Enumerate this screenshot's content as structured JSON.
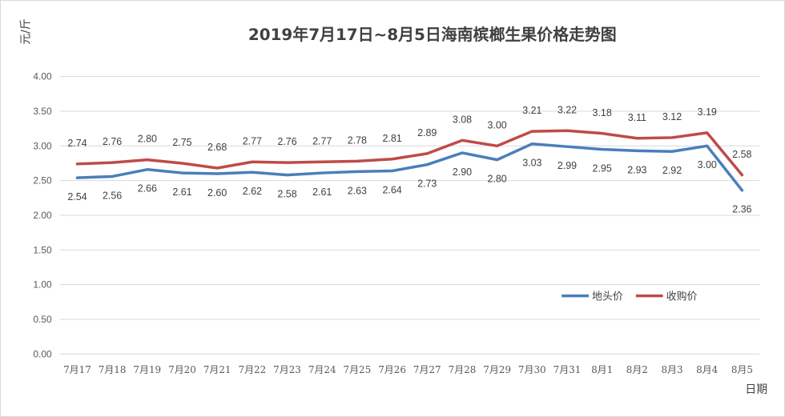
{
  "chart_data": {
    "type": "line",
    "title": "2019年7月17日~8月5日海南槟榔生果价格走势图",
    "ylabel": "元/斤",
    "xlabel": "日期",
    "ylim": [
      0,
      4
    ],
    "yticks": [
      "0.00",
      "0.50",
      "1.00",
      "1.50",
      "2.00",
      "2.50",
      "3.00",
      "3.50",
      "4.00"
    ],
    "grid": true,
    "legend_position": "right-middle",
    "categories": [
      "7月17",
      "7月18",
      "7月19",
      "7月20",
      "7月21",
      "7月22",
      "7月23",
      "7月24",
      "7月25",
      "7月26",
      "7月27",
      "7月28",
      "7月29",
      "7月30",
      "7月31",
      "8月1",
      "8月2",
      "8月3",
      "8月4",
      "8月5"
    ],
    "series": [
      {
        "name": "地头价",
        "color": "#4a7ebb",
        "values": [
          2.54,
          2.56,
          2.66,
          2.61,
          2.6,
          2.62,
          2.58,
          2.61,
          2.63,
          2.64,
          2.73,
          2.9,
          2.8,
          3.03,
          2.99,
          2.95,
          2.93,
          2.92,
          3.0,
          2.36
        ],
        "labels": [
          "2.54",
          "2.56",
          "2.66",
          "2.61",
          "2.60",
          "2.62",
          "2.58",
          "2.61",
          "2.63",
          "2.64",
          "2.73",
          "2.90",
          "2.80",
          "3.03",
          "2.99",
          "2.95",
          "2.93",
          "2.92",
          "3.00",
          "2.36"
        ]
      },
      {
        "name": "收购价",
        "color": "#be4b48",
        "values": [
          2.74,
          2.76,
          2.8,
          2.75,
          2.68,
          2.77,
          2.76,
          2.77,
          2.78,
          2.81,
          2.89,
          3.08,
          3.0,
          3.21,
          3.22,
          3.18,
          3.11,
          3.12,
          3.19,
          2.58
        ],
        "labels": [
          "2.74",
          "2.76",
          "2.80",
          "2.75",
          "2.68",
          "2.77",
          "2.76",
          "2.77",
          "2.78",
          "2.81",
          "2.89",
          "3.08",
          "3.00",
          "3.21",
          "3.22",
          "3.18",
          "3.11",
          "3.12",
          "3.19",
          "2.58"
        ]
      }
    ]
  }
}
